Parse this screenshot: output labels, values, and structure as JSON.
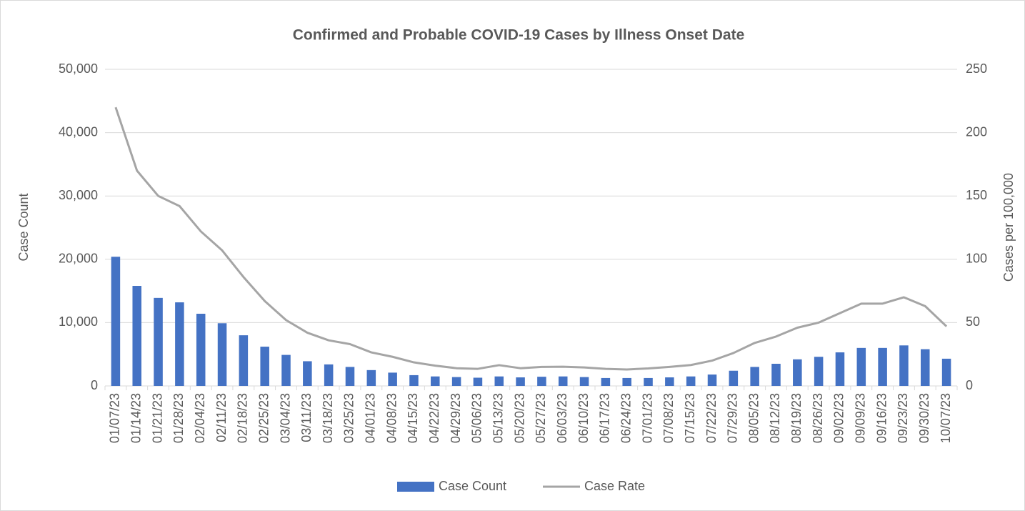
{
  "chart_data": {
    "type": "bar_line",
    "title": "Confirmed and Probable COVID-19 Cases by Illness Onset Date",
    "ylabel": "Case Count",
    "y2label": "Cases per 100,000",
    "categories": [
      "01/07/23",
      "01/14/23",
      "01/21/23",
      "01/28/23",
      "02/04/23",
      "02/11/23",
      "02/18/23",
      "02/25/23",
      "03/04/23",
      "03/11/23",
      "03/18/23",
      "03/25/23",
      "04/01/23",
      "04/08/23",
      "04/15/23",
      "04/22/23",
      "04/29/23",
      "05/06/23",
      "05/13/23",
      "05/20/23",
      "05/27/23",
      "06/03/23",
      "06/10/23",
      "06/17/23",
      "06/24/23",
      "07/01/23",
      "07/08/23",
      "07/15/23",
      "07/22/23",
      "07/29/23",
      "08/05/23",
      "08/12/23",
      "08/19/23",
      "08/26/23",
      "09/02/23",
      "09/09/23",
      "09/16/23",
      "09/23/23",
      "09/30/23",
      "10/07/23"
    ],
    "series": [
      {
        "name": "Case Count",
        "type": "bar",
        "color": "#4472c4",
        "values": [
          20400,
          15800,
          13900,
          13200,
          11400,
          9900,
          8000,
          6200,
          4900,
          3900,
          3400,
          3000,
          2500,
          2100,
          1700,
          1500,
          1400,
          1300,
          1500,
          1350,
          1450,
          1500,
          1400,
          1250,
          1250,
          1250,
          1350,
          1500,
          1800,
          2400,
          3000,
          3500,
          4200,
          4600,
          5300,
          6000,
          6000,
          6400,
          5800,
          4300
        ]
      },
      {
        "name": "Case Rate",
        "type": "line",
        "axis": "y2",
        "color": "#a5a5a5",
        "values": [
          220,
          170,
          150,
          142,
          122,
          107,
          86,
          67,
          52,
          42,
          36,
          33,
          26.5,
          23,
          18.6,
          16,
          14,
          13.5,
          16.4,
          14,
          15,
          15.2,
          14.6,
          13.5,
          13,
          13.8,
          15,
          16.5,
          20,
          26,
          34,
          39,
          46,
          50,
          57.5,
          65,
          65,
          70,
          63,
          47
        ]
      }
    ],
    "ylim": [
      0,
      50000
    ],
    "yticks": [
      0,
      {
        "value": 10000,
        "label": "10,000"
      },
      {
        "value": 20000,
        "label": "20,000"
      },
      {
        "value": 30000,
        "label": "30,000"
      },
      {
        "value": 40000,
        "label": "40,000"
      },
      {
        "value": 50000,
        "label": "50,000"
      }
    ],
    "y2lim": [
      0,
      250
    ],
    "y2ticks": [
      0,
      50,
      100,
      150,
      200,
      250
    ],
    "grid": true,
    "legend": "bottom"
  }
}
